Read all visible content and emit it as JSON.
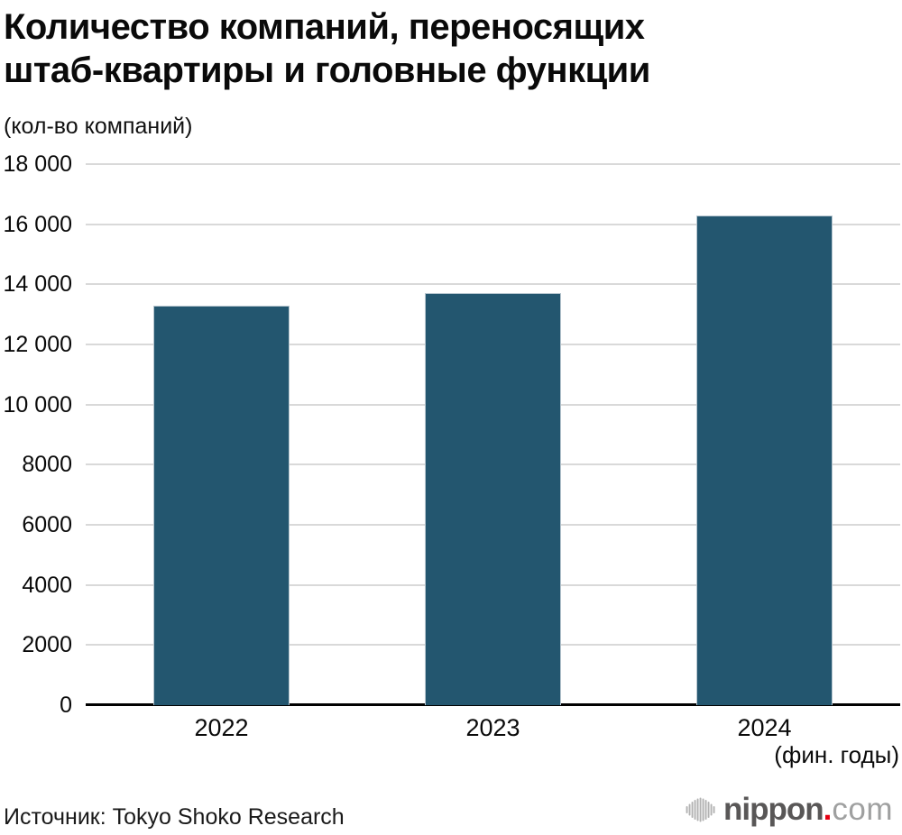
{
  "title": {
    "line1": "Количество компаний, переносящих",
    "line2": "штаб-квартиры и головные функции"
  },
  "subtitle": "(кол-во компаний)",
  "chart_data": {
    "type": "bar",
    "title": "Количество компаний, переносящих штаб-квартиры и головные функции",
    "ylabel": "(кол-во компаний)",
    "xlabel": "(фин. годы)",
    "categories": [
      "2022",
      "2023",
      "2024"
    ],
    "values": [
      13300,
      13700,
      16300
    ],
    "ylim": [
      0,
      18000
    ],
    "ytick_labels": [
      "0",
      "2000",
      "4000",
      "6000",
      "8000",
      "10 000",
      "12 000",
      "14 000",
      "16 000",
      "18 000"
    ],
    "grid": true,
    "legend": "none",
    "bar_color": "#23566f",
    "bar_border_color": "#b7c6cf",
    "gridline_color": "#d9d9d9"
  },
  "footer": {
    "source": "Источник: Tokyo Shoko Research",
    "logo": {
      "brand": "nippon",
      "dot": ".",
      "tld": "com",
      "brand_color": "#595757",
      "dot_color": "#e60012",
      "tld_color": "#9fa0a0",
      "icon_color": "#b2b2b2"
    }
  }
}
